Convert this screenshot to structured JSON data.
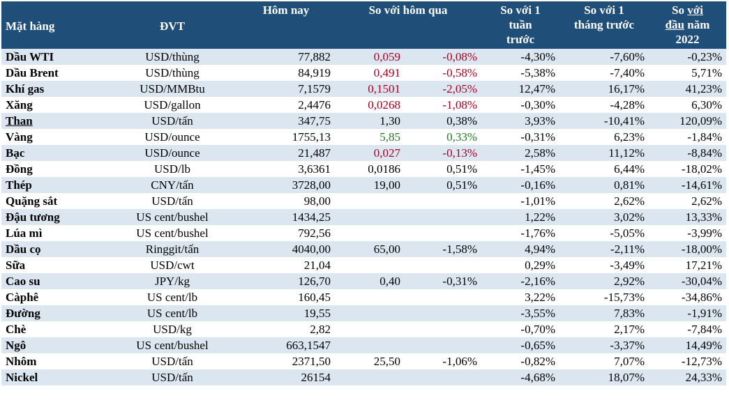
{
  "headers": {
    "item": "Mặt hàng",
    "unit": "ĐVT",
    "today": "Hôm nay",
    "vs_yesterday": "So với hôm qua",
    "vs_week_l1": "So với 1",
    "vs_week_l2": "tuần",
    "vs_week_l3": "trước",
    "vs_month_l1": "So với 1",
    "vs_month_l2": "tháng trước",
    "vs_ytd_l1a": "So ",
    "vs_ytd_l1b": "với",
    "vs_ytd_l2a": "đầu",
    "vs_ytd_l2b": " năm",
    "vs_ytd_l3": "2022"
  },
  "colors": {
    "header_bg": "#1f4e79",
    "stripe": "#dce6f1",
    "negative": "#a50021",
    "positive": "#1e7b1e"
  },
  "rows": [
    {
      "name": "Dầu WTI",
      "unit": "USD/thùng",
      "today": "77,882",
      "chg": "0,059",
      "chg_pct": "-0,08%",
      "week": "-4,30%",
      "month": "-7,60%",
      "ytd": "-0,23%",
      "color": "red"
    },
    {
      "name": "Dầu Brent",
      "unit": "USD/thùng",
      "today": "84,919",
      "chg": "0,491",
      "chg_pct": "-0,58%",
      "week": "-5,38%",
      "month": "-7,40%",
      "ytd": "5,71%",
      "color": "red"
    },
    {
      "name": "Khí gas",
      "unit": "USD/MMBtu",
      "today": "7,1579",
      "chg": "0,1501",
      "chg_pct": "-2,05%",
      "week": "12,47%",
      "month": "16,17%",
      "ytd": "41,23%",
      "color": "red"
    },
    {
      "name": "Xăng",
      "unit": "USD/gallon",
      "today": "2,4476",
      "chg": "0,0268",
      "chg_pct": "-1,08%",
      "week": "-0,30%",
      "month": "-4,28%",
      "ytd": "6,30%",
      "color": "red"
    },
    {
      "name": "Than",
      "unit": "USD/tấn",
      "today": "347,75",
      "chg": "1,30",
      "chg_pct": "0,38%",
      "week": "3,93%",
      "month": "-10,41%",
      "ytd": "120,09%",
      "color": "",
      "underline": true
    },
    {
      "name": "Vàng",
      "unit": "USD/ounce",
      "today": "1755,13",
      "chg": "5,85",
      "chg_pct": "0,33%",
      "week": "-0,31%",
      "month": "6,23%",
      "ytd": "-1,84%",
      "color": "green"
    },
    {
      "name": "Bạc",
      "unit": "USD/ounce",
      "today": "21,487",
      "chg": "0,027",
      "chg_pct": "-0,13%",
      "week": "2,58%",
      "month": "11,12%",
      "ytd": "-8,84%",
      "color": "red"
    },
    {
      "name": "Đồng",
      "unit": "USD/lb",
      "today": "3,6361",
      "chg": "0,0186",
      "chg_pct": "0,51%",
      "week": "-1,45%",
      "month": "6,44%",
      "ytd": "-18,02%",
      "color": ""
    },
    {
      "name": "Thép",
      "unit": "CNY/tấn",
      "today": "3728,00",
      "chg": "19,00",
      "chg_pct": "0,51%",
      "week": "-0,16%",
      "month": "0,81%",
      "ytd": "-14,61%",
      "color": ""
    },
    {
      "name": "Quặng sắt",
      "unit": "USD/tấn",
      "today": "98,00",
      "chg": "",
      "chg_pct": "",
      "week": "-1,01%",
      "month": "2,62%",
      "ytd": "2,62%",
      "color": ""
    },
    {
      "name": "Đậu tương",
      "unit": "US cent/bushel",
      "today": "1434,25",
      "chg": "",
      "chg_pct": "",
      "week": "1,22%",
      "month": "3,02%",
      "ytd": "13,33%",
      "color": ""
    },
    {
      "name": "Lúa mì",
      "unit": "US cent/bushel",
      "today": "792,56",
      "chg": "",
      "chg_pct": "",
      "week": "-1,76%",
      "month": "-5,05%",
      "ytd": "-3,99%",
      "color": ""
    },
    {
      "name": "Dầu cọ",
      "unit": "Ringgit/tấn",
      "today": "4040,00",
      "chg": "65,00",
      "chg_pct": "-1,58%",
      "week": "4,94%",
      "month": "-2,11%",
      "ytd": "-18,00%",
      "color": ""
    },
    {
      "name": "Sữa",
      "unit": "USD/cwt",
      "today": "21,04",
      "chg": "",
      "chg_pct": "",
      "week": "0,29%",
      "month": "-3,49%",
      "ytd": "17,21%",
      "color": ""
    },
    {
      "name": "Cao su",
      "unit": "JPY/kg",
      "today": "126,70",
      "chg": "0,40",
      "chg_pct": "-0,31%",
      "week": "-2,16%",
      "month": "2,92%",
      "ytd": "-30,04%",
      "color": ""
    },
    {
      "name": "Càphê",
      "unit": "US cent/lb",
      "today": "160,45",
      "chg": "",
      "chg_pct": "",
      "week": "3,22%",
      "month": "-15,73%",
      "ytd": "-34,86%",
      "color": ""
    },
    {
      "name": "Đường",
      "unit": "US cent/lb",
      "today": "19,55",
      "chg": "",
      "chg_pct": "",
      "week": "-3,55%",
      "month": "7,83%",
      "ytd": "-1,91%",
      "color": ""
    },
    {
      "name": "Chè",
      "unit": "USD/kg",
      "today": "2,82",
      "chg": "",
      "chg_pct": "",
      "week": "-0,70%",
      "month": "2,17%",
      "ytd": "-7,84%",
      "color": ""
    },
    {
      "name": "Ngô",
      "unit": "US cent/bushel",
      "today": "663,1547",
      "chg": "",
      "chg_pct": "",
      "week": "-0,65%",
      "month": "-3,37%",
      "ytd": "14,49%",
      "color": ""
    },
    {
      "name": "Nhôm",
      "unit": "USD/tấn",
      "today": "2371,50",
      "chg": "25,50",
      "chg_pct": "-1,06%",
      "week": "-0,82%",
      "month": "7,07%",
      "ytd": "-12,73%",
      "color": ""
    },
    {
      "name": "Nickel",
      "unit": "USD/tấn",
      "today": "26154",
      "chg": "",
      "chg_pct": "",
      "week": "-4,68%",
      "month": "18,07%",
      "ytd": "24,33%",
      "color": ""
    }
  ]
}
